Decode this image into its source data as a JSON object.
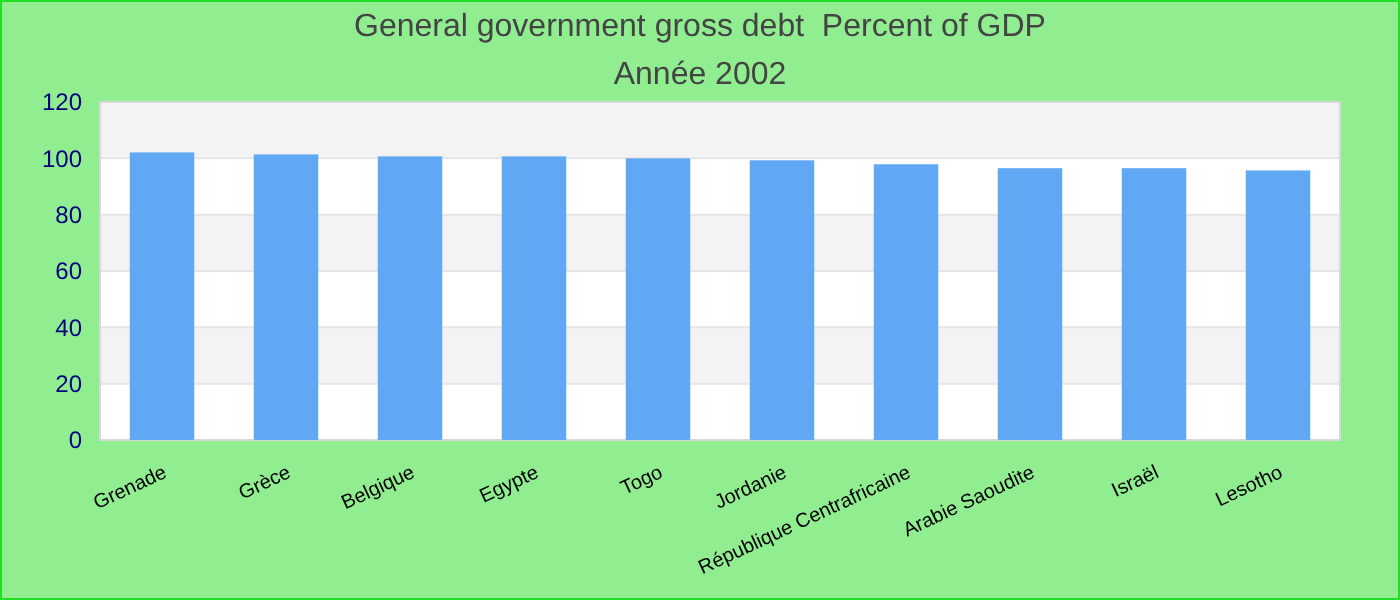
{
  "chart_data": {
    "type": "bar",
    "title": "General government gross debt  Percent of GDP",
    "subtitle": "Année 2002",
    "categories": [
      "Grenade",
      "Grèce",
      "Belgique",
      "Egypte",
      "Togo",
      "Jordanie",
      "République Centrafricaine",
      "Arabie Saoudite",
      "Israël",
      "Lesotho"
    ],
    "values": [
      102.1,
      101.4,
      100.7,
      100.7,
      100,
      99.3,
      97.9,
      96.5,
      96.5,
      95.7
    ],
    "color": "#60a8f4",
    "ylim": [
      0,
      120
    ],
    "yticks": [
      0,
      20,
      40,
      60,
      80,
      100,
      120
    ],
    "grid": "y"
  }
}
